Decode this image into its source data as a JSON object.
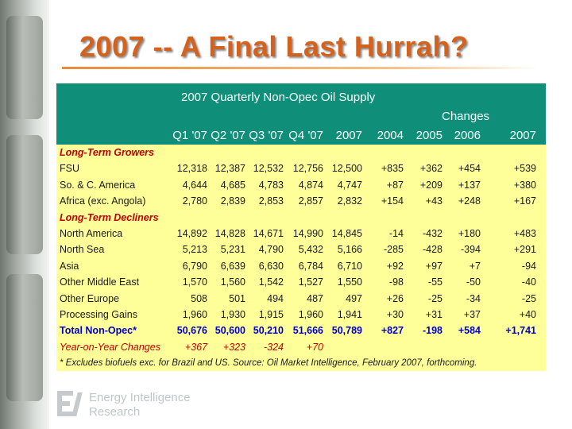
{
  "slide": {
    "title": "2007 -- A Final Last Hurrah?",
    "brand_colors": {
      "title": "#d4621d",
      "header_bg": "#0f8f79",
      "table_bg": "#ffff99",
      "category_text": "#c00000",
      "total_text": "#0000cc"
    },
    "logo_icon": "energy-intelligence-logo-icon",
    "org_line1": "Energy Intelligence",
    "org_line2": "Research"
  },
  "table": {
    "title": "2007 Quarterly Non-Opec Oil Supply",
    "changes_label": "Changes",
    "columns": [
      "Q1 '07",
      "Q2 '07",
      "Q3 '07",
      "Q4 '07",
      "2007",
      "2004",
      "2005",
      "2006",
      "2007"
    ],
    "rows": [
      {
        "type": "category",
        "label": "Long-Term Growers",
        "values": []
      },
      {
        "type": "data",
        "label": "FSU",
        "values": [
          "12,318",
          "12,387",
          "12,532",
          "12,756",
          "12,500",
          "+835",
          "+362",
          "+454",
          "+539"
        ]
      },
      {
        "type": "data",
        "label": "So. & C. America",
        "values": [
          "4,644",
          "4,685",
          "4,783",
          "4,874",
          "4,747",
          "+87",
          "+209",
          "+137",
          "+380"
        ]
      },
      {
        "type": "data",
        "label": "Africa (exc. Angola)",
        "values": [
          "2,780",
          "2,839",
          "2,853",
          "2,857",
          "2,832",
          "+154",
          "+43",
          "+248",
          "+167"
        ]
      },
      {
        "type": "category",
        "label": "Long-Term Decliners",
        "values": []
      },
      {
        "type": "data",
        "label": "North America",
        "values": [
          "14,892",
          "14,828",
          "14,671",
          "14,990",
          "14,845",
          "-14",
          "-432",
          "+180",
          "+483"
        ]
      },
      {
        "type": "data",
        "label": "North Sea",
        "values": [
          "5,213",
          "5,231",
          "4,790",
          "5,432",
          "5,166",
          "-285",
          "-428",
          "-394",
          "+291"
        ]
      },
      {
        "type": "data",
        "label": "Asia",
        "values": [
          "6,790",
          "6,639",
          "6,630",
          "6,784",
          "6,710",
          "+92",
          "+97",
          "+7",
          "-94"
        ]
      },
      {
        "type": "data",
        "label": "Other Middle East",
        "values": [
          "1,570",
          "1,560",
          "1,542",
          "1,527",
          "1,550",
          "-98",
          "-55",
          "-50",
          "-40"
        ]
      },
      {
        "type": "data",
        "label": "Other Europe",
        "values": [
          "508",
          "501",
          "494",
          "487",
          "497",
          "+26",
          "-25",
          "-34",
          "-25"
        ]
      },
      {
        "type": "data",
        "label": "Processing Gains",
        "values": [
          "1,960",
          "1,930",
          "1,915",
          "1,960",
          "1,941",
          "+30",
          "+31",
          "+37",
          "+40"
        ]
      },
      {
        "type": "total",
        "label": "Total Non-Opec*",
        "values": [
          "50,676",
          "50,600",
          "50,210",
          "51,666",
          "50,789",
          "+827",
          "-198",
          "+584",
          "+1,741"
        ]
      },
      {
        "type": "yoy",
        "label": "Year-on-Year Changes",
        "values": [
          "+367",
          "+323",
          "-324",
          "+70",
          "",
          "",
          "",
          "",
          ""
        ]
      }
    ],
    "footnote": "* Excludes biofuels exc. for Brazil and US. Source: Oil Market Intelligence, February 2007, forthcoming."
  }
}
